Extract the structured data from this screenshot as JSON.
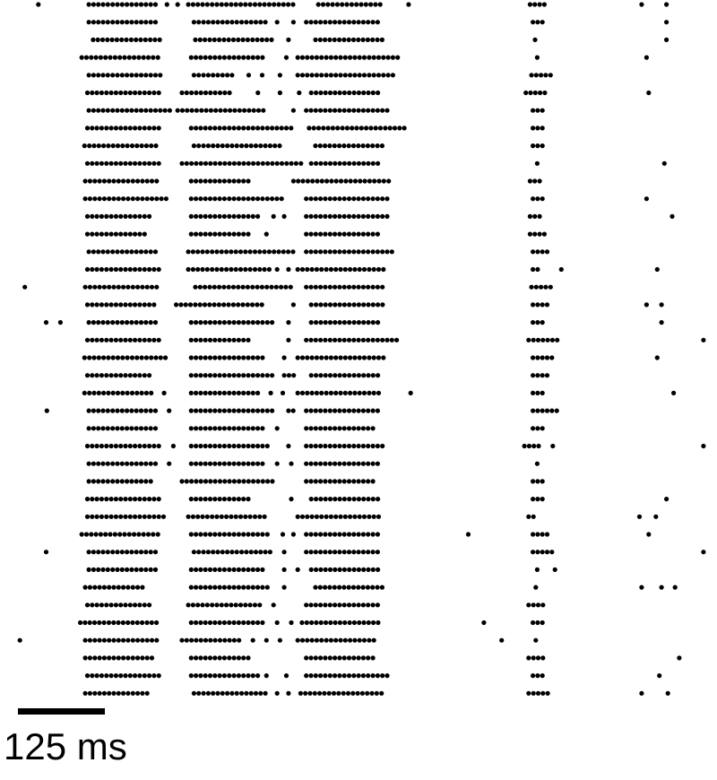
{
  "chart_data": {
    "type": "raster",
    "x_unit": "ms",
    "dot_color": "#000000",
    "spike_interval_ms": 6.7,
    "scale_bar": {
      "length_ms": 125,
      "label": "125 ms"
    },
    "trials": [
      [
        [
          54,
          54
        ],
        [
          125,
          225
        ],
        [
          235,
          235
        ],
        [
          250,
          250
        ],
        [
          265,
          413
        ],
        [
          448,
          540
        ],
        [
          575,
          575
        ],
        [
          746,
          769
        ],
        [
          903,
          903
        ],
        [
          938,
          938
        ]
      ],
      [
        [
          125,
          225
        ],
        [
          273,
          375
        ],
        [
          390,
          390
        ],
        [
          413,
          413
        ],
        [
          431,
          538
        ],
        [
          750,
          769
        ],
        [
          938,
          938
        ]
      ],
      [
        [
          131,
          225
        ],
        [
          275,
          388
        ],
        [
          406,
          406
        ],
        [
          444,
          538
        ],
        [
          753,
          753
        ],
        [
          938,
          938
        ]
      ],
      [
        [
          115,
          225
        ],
        [
          269,
          375
        ],
        [
          403,
          403
        ],
        [
          419,
          563
        ],
        [
          756,
          756
        ],
        [
          910,
          910
        ]
      ],
      [
        [
          125,
          231
        ],
        [
          273,
          331
        ],
        [
          350,
          350
        ],
        [
          369,
          369
        ],
        [
          394,
          394
        ],
        [
          419,
          556
        ],
        [
          748,
          781
        ]
      ],
      [
        [
          123,
          225
        ],
        [
          256,
          325
        ],
        [
          363,
          363
        ],
        [
          394,
          394
        ],
        [
          421,
          421
        ],
        [
          438,
          538
        ],
        [
          740,
          769
        ],
        [
          913,
          913
        ]
      ],
      [
        [
          125,
          244
        ],
        [
          250,
          375
        ],
        [
          413,
          413
        ],
        [
          431,
          548
        ],
        [
          750,
          769
        ]
      ],
      [
        [
          123,
          225
        ],
        [
          269,
          413
        ],
        [
          435,
          575
        ],
        [
          750,
          769
        ]
      ],
      [
        [
          119,
          225
        ],
        [
          273,
          394
        ],
        [
          444,
          538
        ],
        [
          750,
          769
        ]
      ],
      [
        [
          123,
          225
        ],
        [
          256,
          425
        ],
        [
          438,
          538
        ],
        [
          756,
          756
        ],
        [
          935,
          935
        ]
      ],
      [
        [
          120,
          225
        ],
        [
          269,
          350
        ],
        [
          413,
          550
        ],
        [
          746,
          763
        ]
      ],
      [
        [
          120,
          238
        ],
        [
          269,
          400
        ],
        [
          431,
          550
        ],
        [
          750,
          769
        ],
        [
          910,
          910
        ]
      ],
      [
        [
          123,
          213
        ],
        [
          269,
          363
        ],
        [
          385,
          385
        ],
        [
          400,
          400
        ],
        [
          431,
          550
        ],
        [
          746,
          763
        ],
        [
          946,
          946
        ]
      ],
      [
        [
          123,
          206
        ],
        [
          269,
          356
        ],
        [
          375,
          375
        ],
        [
          431,
          538
        ],
        [
          746,
          769
        ]
      ],
      [
        [
          125,
          225
        ],
        [
          265,
          413
        ],
        [
          431,
          556
        ],
        [
          750,
          775
        ]
      ],
      [
        [
          123,
          225
        ],
        [
          265,
          381
        ],
        [
          390,
          390
        ],
        [
          406,
          406
        ],
        [
          419,
          540
        ],
        [
          750,
          763
        ],
        [
          790,
          790
        ],
        [
          925,
          925
        ]
      ],
      [
        [
          35,
          35
        ],
        [
          120,
          225
        ],
        [
          275,
          413
        ],
        [
          431,
          540
        ],
        [
          748,
          781
        ]
      ],
      [
        [
          123,
          219
        ],
        [
          248,
          369
        ],
        [
          413,
          413
        ],
        [
          438,
          540
        ],
        [
          750,
          771
        ],
        [
          910,
          910
        ],
        [
          931,
          931
        ]
      ],
      [
        [
          65,
          65
        ],
        [
          85,
          85
        ],
        [
          125,
          225
        ],
        [
          269,
          388
        ],
        [
          406,
          406
        ],
        [
          438,
          538
        ],
        [
          750,
          769
        ],
        [
          931,
          931
        ]
      ],
      [
        [
          123,
          225
        ],
        [
          269,
          356
        ],
        [
          406,
          406
        ],
        [
          431,
          563
        ],
        [
          744,
          788
        ],
        [
          990,
          990
        ]
      ],
      [
        [
          119,
          238
        ],
        [
          269,
          375
        ],
        [
          400,
          400
        ],
        [
          419,
          544
        ],
        [
          750,
          781
        ],
        [
          925,
          925
        ]
      ],
      [
        [
          123,
          213
        ],
        [
          269,
          388
        ],
        [
          400,
          419
        ],
        [
          438,
          538
        ],
        [
          750,
          775
        ]
      ],
      [
        [
          119,
          219
        ],
        [
          231,
          231
        ],
        [
          269,
          369
        ],
        [
          381,
          381
        ],
        [
          398,
          398
        ],
        [
          419,
          538
        ],
        [
          578,
          578
        ],
        [
          750,
          769
        ],
        [
          948,
          948
        ]
      ],
      [
        [
          66,
          66
        ],
        [
          125,
          225
        ],
        [
          238,
          238
        ],
        [
          269,
          388
        ],
        [
          406,
          419
        ],
        [
          431,
          538
        ],
        [
          750,
          788
        ]
      ],
      [
        [
          125,
          225
        ],
        [
          269,
          375
        ],
        [
          390,
          390
        ],
        [
          431,
          525
        ],
        [
          750,
          769
        ]
      ],
      [
        [
          123,
          225
        ],
        [
          244,
          244
        ],
        [
          269,
          381
        ],
        [
          406,
          406
        ],
        [
          431,
          544
        ],
        [
          738,
          763
        ],
        [
          778,
          778
        ],
        [
          990,
          990
        ]
      ],
      [
        [
          125,
          219
        ],
        [
          238,
          238
        ],
        [
          269,
          375
        ],
        [
          390,
          390
        ],
        [
          410,
          410
        ],
        [
          431,
          538
        ],
        [
          756,
          756
        ]
      ],
      [
        [
          125,
          213
        ],
        [
          256,
          388
        ],
        [
          431,
          531
        ],
        [
          750,
          769
        ]
      ],
      [
        [
          123,
          225
        ],
        [
          269,
          356
        ],
        [
          410,
          410
        ],
        [
          438,
          538
        ],
        [
          750,
          769
        ],
        [
          938,
          938
        ]
      ],
      [
        [
          123,
          231
        ],
        [
          265,
          375
        ],
        [
          419,
          538
        ],
        [
          744,
          756
        ],
        [
          900,
          900
        ],
        [
          923,
          923
        ]
      ],
      [
        [
          115,
          225
        ],
        [
          269,
          381
        ],
        [
          398,
          398
        ],
        [
          413,
          413
        ],
        [
          431,
          538
        ],
        [
          659,
          659
        ],
        [
          750,
          775
        ],
        [
          913,
          913
        ]
      ],
      [
        [
          65,
          65
        ],
        [
          125,
          225
        ],
        [
          273,
          381
        ],
        [
          400,
          400
        ],
        [
          431,
          538
        ],
        [
          750,
          781
        ],
        [
          990,
          990
        ]
      ],
      [
        [
          125,
          225
        ],
        [
          269,
          375
        ],
        [
          400,
          400
        ],
        [
          419,
          419
        ],
        [
          438,
          538
        ],
        [
          756,
          756
        ],
        [
          781,
          781
        ]
      ],
      [
        [
          120,
          206
        ],
        [
          269,
          381
        ],
        [
          400,
          400
        ],
        [
          444,
          538
        ],
        [
          754,
          754
        ],
        [
          903,
          903
        ],
        [
          931,
          931
        ],
        [
          950,
          950
        ]
      ],
      [
        [
          123,
          213
        ],
        [
          265,
          369
        ],
        [
          385,
          385
        ],
        [
          431,
          538
        ],
        [
          744,
          769
        ]
      ],
      [
        [
          113,
          225
        ],
        [
          269,
          375
        ],
        [
          390,
          390
        ],
        [
          410,
          410
        ],
        [
          425,
          538
        ],
        [
          681,
          681
        ],
        [
          750,
          769
        ]
      ],
      [
        [
          28,
          28
        ],
        [
          120,
          225
        ],
        [
          256,
          338
        ],
        [
          356,
          356
        ],
        [
          375,
          375
        ],
        [
          394,
          394
        ],
        [
          419,
          531
        ],
        [
          706,
          706
        ],
        [
          754,
          754
        ]
      ],
      [
        [
          120,
          219
        ],
        [
          269,
          350
        ],
        [
          431,
          531
        ],
        [
          744,
          765
        ],
        [
          956,
          956
        ]
      ],
      [
        [
          123,
          225
        ],
        [
          269,
          363
        ],
        [
          375,
          375
        ],
        [
          403,
          403
        ],
        [
          431,
          550
        ],
        [
          750,
          769
        ],
        [
          928,
          928
        ]
      ],
      [
        [
          120,
          213
        ],
        [
          273,
          375
        ],
        [
          390,
          390
        ],
        [
          406,
          406
        ],
        [
          423,
          538
        ],
        [
          744,
          771
        ],
        [
          903,
          903
        ],
        [
          940,
          940
        ]
      ]
    ]
  }
}
